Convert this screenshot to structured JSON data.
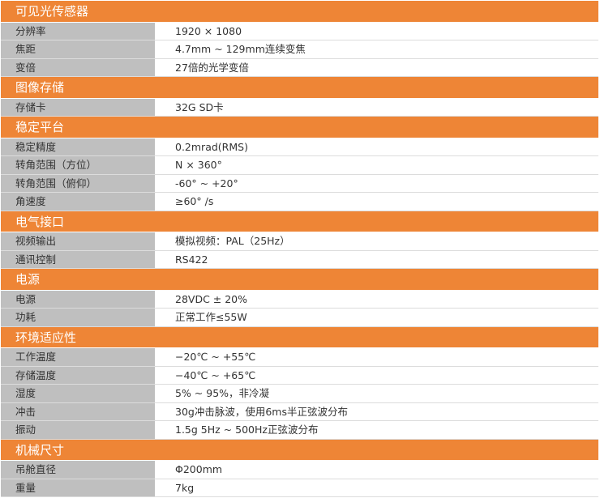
{
  "colors": {
    "section_header": "#ee8536",
    "label_column": "#bfbfbf",
    "value_column": "#ffffff"
  },
  "sections": [
    {
      "title": "可见光传感器",
      "rows": [
        {
          "label": "分辨率",
          "value": "1920 × 1080"
        },
        {
          "label": "焦距",
          "value": "4.7mm ~ 129mm连续变焦"
        },
        {
          "label": "变倍",
          "value": "27倍的光学变倍"
        }
      ]
    },
    {
      "title": "图像存储",
      "rows": [
        {
          "label": "存储卡",
          "value": "32G SD卡"
        }
      ]
    },
    {
      "title": "稳定平台",
      "rows": [
        {
          "label": "稳定精度",
          "value": "0.2mrad(RMS)"
        },
        {
          "label": "转角范围（方位）",
          "value": "N × 360°"
        },
        {
          "label": "转角范围（俯仰）",
          "value": "-60°  ~ +20°"
        },
        {
          "label": "角速度",
          "value": "≥60° /s"
        }
      ]
    },
    {
      "title": "电气接口",
      "rows": [
        {
          "label": "视频输出",
          "value": "模拟视频：PAL（25Hz）"
        },
        {
          "label": "通讯控制",
          "value": "RS422"
        }
      ]
    },
    {
      "title": "电源",
      "rows": [
        {
          "label": "电源",
          "value": "28VDC ± 20%"
        },
        {
          "label": "功耗",
          "value": "正常工作≤55W"
        }
      ]
    },
    {
      "title": "环境适应性",
      "rows": [
        {
          "label": "工作温度",
          "value": "−20℃ ~ +55℃"
        },
        {
          "label": "存储温度",
          "value": "−40℃ ~ +65℃"
        },
        {
          "label": "湿度",
          "value": "5% ~ 95%，非冷凝"
        },
        {
          "label": "冲击",
          "value": "30g冲击脉波，使用6ms半正弦波分布"
        },
        {
          "label": "振动",
          "value": "1.5g 5Hz ~ 500Hz正弦波分布"
        }
      ]
    },
    {
      "title": "机械尺寸",
      "rows": [
        {
          "label": "吊舱直径",
          "value": "Φ200mm"
        },
        {
          "label": "重量",
          "value": "7kg"
        }
      ]
    }
  ]
}
